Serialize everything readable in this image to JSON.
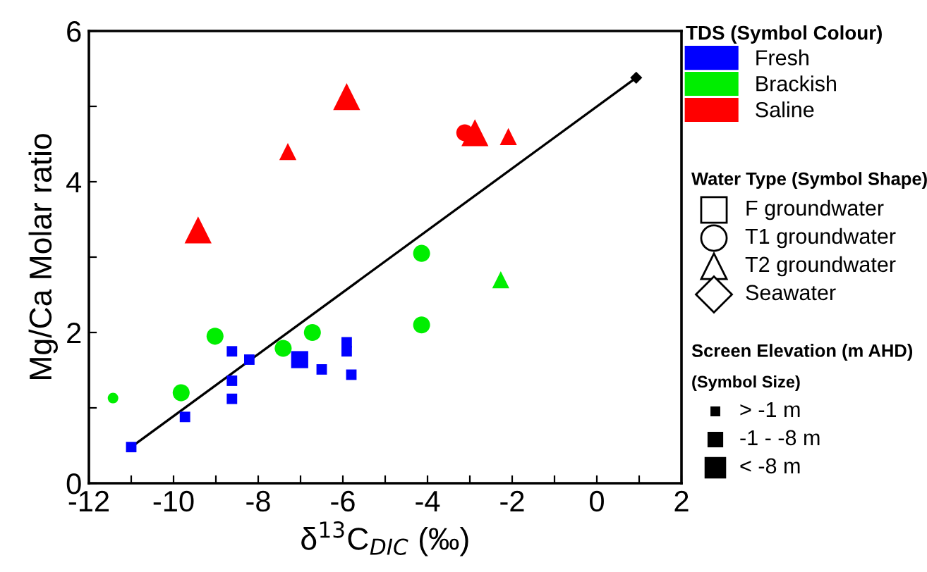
{
  "chart_data": {
    "type": "scatter",
    "xlabel": "δ$^{13}$C$_{DIC}$ (‰)",
    "ylabel": "Mg/Ca Molar ratio",
    "xlim": [
      -12,
      2
    ],
    "ylim": [
      0,
      6
    ],
    "xticks": [
      -12,
      {
        "value": -11,
        "label": null
      },
      -10,
      {
        "value": -9,
        "label": null
      },
      -8,
      {
        "value": -7,
        "label": null
      },
      -6,
      {
        "value": -5,
        "label": null
      },
      -4,
      {
        "value": -3,
        "label": null
      },
      -2,
      {
        "value": -1,
        "label": null
      },
      0,
      {
        "value": 1,
        "label": null
      },
      2
    ],
    "yticks": [
      0,
      {
        "value": 1,
        "label": null
      },
      2,
      {
        "value": 3,
        "label": null
      },
      4,
      {
        "value": 5,
        "label": null
      },
      6
    ],
    "grid": false,
    "legend": "top right",
    "legend_title": "TDS (Symbol Colour)",
    "series": [
      {
        "type": "line",
        "color": "#000000",
        "marker": "none",
        "line_style": "solid",
        "x": [
          -11.0,
          0.93
        ],
        "values": [
          0.48,
          5.38
        ]
      },
      {
        "name": "Fresh",
        "color": "#0000ff",
        "x": [
          -11.0,
          -9.73,
          -8.62,
          -8.62,
          -8.62,
          -8.21,
          -6.5,
          -5.91,
          -5.91,
          -5.8,
          -7.02
        ],
        "values": [
          0.48,
          0.88,
          1.75,
          1.36,
          1.12,
          1.64,
          1.51,
          1.87,
          1.75,
          1.44,
          1.64
        ],
        "marker": [
          "square",
          "square",
          "square",
          "square",
          "square",
          "square",
          "square",
          "square",
          "square",
          "square",
          "square"
        ],
        "sizes": [
          0.3,
          0.3,
          0.3,
          0.3,
          0.3,
          0.3,
          0.3,
          0.3,
          0.3,
          0.3,
          0.8
        ]
      },
      {
        "name": "Brackish",
        "color": "#00ee00",
        "x": [
          -11.43,
          -9.82,
          -9.02,
          -7.41,
          -6.72,
          -4.14,
          -4.14,
          -2.27
        ],
        "values": [
          1.13,
          1.2,
          1.95,
          1.79,
          2.0,
          3.05,
          2.1,
          2.7
        ],
        "marker": [
          "circle",
          "circle",
          "circle",
          "circle",
          "circle",
          "circle",
          "circle",
          "triangle"
        ],
        "sizes": [
          0.24,
          0.62,
          0.62,
          0.62,
          0.62,
          0.62,
          0.62,
          0.4
        ]
      },
      {
        "name": "Saline",
        "color": "#ff0000",
        "x": [
          -9.42,
          -7.3,
          -5.91,
          -3.12,
          -2.88,
          -2.09
        ],
        "values": [
          3.36,
          4.4,
          5.13,
          4.65,
          4.65,
          4.6
        ],
        "marker": [
          "triangle",
          "triangle",
          "triangle",
          "circle",
          "triangle",
          "triangle"
        ],
        "sizes": [
          1,
          0.4,
          1,
          0.62,
          1,
          0.4
        ]
      },
      {
        "color": "#000000",
        "x": [
          0.93
        ],
        "values": [
          5.38
        ],
        "marker": [
          "diamond"
        ],
        "sizes": [
          0.2
        ]
      }
    ],
    "annotations": [
      "Water Type (Symbol Shape)",
      "F groundwater",
      "T1 groundwater",
      "T2 groundwater",
      "Seawater",
      "Screen Elevation (m AHD)",
      "(Symbol Size)",
      "> -1 m",
      "-1 - -8 m",
      "< -8 m"
    ]
  }
}
